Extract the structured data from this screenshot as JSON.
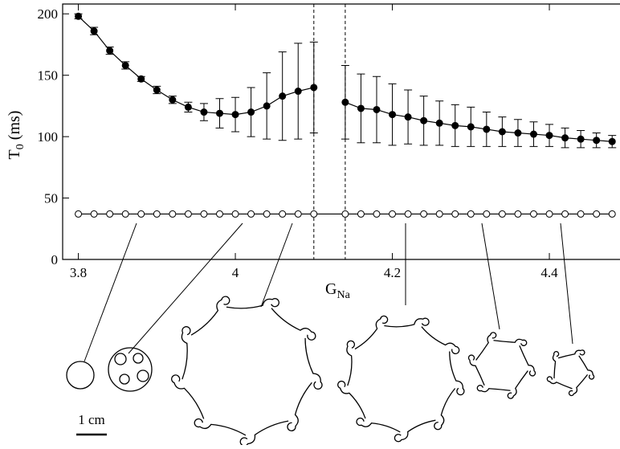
{
  "chart_data": {
    "type": "line",
    "x_label": {
      "main": "G",
      "sub": "Na"
    },
    "y_label": {
      "main": "T",
      "sub": "0",
      "unit": "(ms)"
    },
    "xlim": [
      3.78,
      4.49
    ],
    "ylim": [
      0,
      208
    ],
    "xticks": [
      3.8,
      4,
      4.2,
      4.4
    ],
    "yticks": [
      0,
      50,
      100,
      150,
      200
    ],
    "vlines": [
      4.1,
      4.14
    ],
    "series": [
      {
        "marker": "filled",
        "color": "#000000",
        "x": [
          3.8,
          3.82,
          3.84,
          3.86,
          3.88,
          3.9,
          3.92,
          3.94,
          3.96,
          3.98,
          4.0,
          4.02,
          4.04,
          4.06,
          4.08,
          4.1,
          4.12,
          4.14,
          4.16,
          4.18,
          4.2,
          4.22,
          4.24,
          4.26,
          4.28,
          4.3,
          4.32,
          4.34,
          4.36,
          4.38,
          4.4,
          4.42,
          4.44,
          4.46,
          4.48
        ],
        "values": [
          198,
          186,
          170,
          158,
          147,
          138,
          130,
          124,
          120,
          119,
          118,
          120,
          125,
          133,
          137,
          140,
          null,
          128,
          123,
          122,
          118,
          116,
          113,
          111,
          109,
          108,
          106,
          104,
          103,
          102,
          101,
          99,
          98,
          97,
          96
        ],
        "errors": [
          2,
          3,
          3,
          3,
          2,
          3,
          3,
          4,
          7,
          12,
          14,
          20,
          27,
          36,
          39,
          37,
          null,
          30,
          28,
          27,
          25,
          22,
          20,
          18,
          17,
          16,
          14,
          12,
          11,
          10,
          9,
          8,
          7,
          6,
          5
        ]
      },
      {
        "marker": "open",
        "color": "#000000",
        "x": [
          3.8,
          3.82,
          3.84,
          3.86,
          3.88,
          3.9,
          3.92,
          3.94,
          3.96,
          3.98,
          4.0,
          4.02,
          4.04,
          4.06,
          4.08,
          4.1,
          4.14,
          4.16,
          4.18,
          4.2,
          4.22,
          4.24,
          4.26,
          4.28,
          4.3,
          4.32,
          4.34,
          4.36,
          4.38,
          4.4,
          4.42,
          4.44,
          4.46,
          4.48
        ],
        "values": [
          37,
          37,
          37,
          37,
          37,
          37,
          37,
          37,
          37,
          37,
          37,
          37,
          37,
          37,
          37,
          37,
          37,
          37,
          37,
          37,
          37,
          37,
          37,
          37,
          37,
          37,
          37,
          37,
          37,
          37,
          37,
          37,
          37,
          37
        ]
      }
    ],
    "scale_bar_label": "1 cm"
  }
}
